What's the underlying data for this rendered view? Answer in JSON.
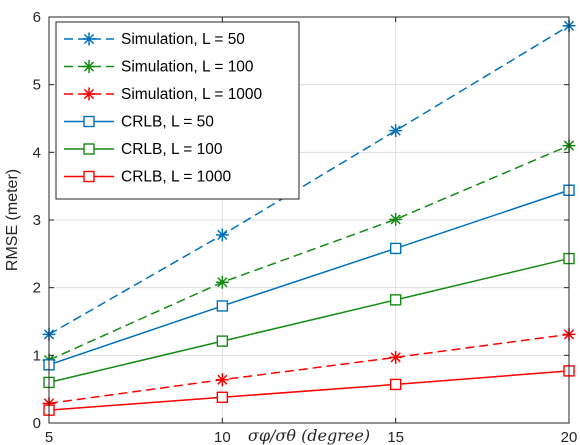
{
  "chart_data": {
    "type": "line",
    "title": "",
    "xlabel": "σφ/σθ (degree)",
    "ylabel": "RMSE (meter)",
    "x": [
      5,
      10,
      15,
      20
    ],
    "xlim": [
      5,
      20
    ],
    "ylim": [
      0,
      6
    ],
    "xticks": [
      "5",
      "10",
      "15",
      "20"
    ],
    "yticks": [
      "0",
      "1",
      "2",
      "3",
      "4",
      "5",
      "6"
    ],
    "grid": true,
    "legend_position": "top-left",
    "series": [
      {
        "name": "Simulation, L = 50",
        "values": [
          1.31,
          2.78,
          4.32,
          5.87
        ],
        "color": "#0072BD",
        "line_style": "dashed",
        "marker": "asterisk"
      },
      {
        "name": "Simulation, L = 100",
        "values": [
          0.93,
          2.08,
          3.01,
          4.1
        ],
        "color": "#148C14",
        "line_style": "dashed",
        "marker": "asterisk"
      },
      {
        "name": "Simulation, L = 1000",
        "values": [
          0.29,
          0.64,
          0.97,
          1.31
        ],
        "color": "#FF0000",
        "line_style": "dashed",
        "marker": "asterisk"
      },
      {
        "name": "CRLB, L = 50",
        "values": [
          0.86,
          1.73,
          2.58,
          3.44
        ],
        "color": "#0072BD",
        "line_style": "solid",
        "marker": "square"
      },
      {
        "name": "CRLB, L = 100",
        "values": [
          0.6,
          1.21,
          1.82,
          2.43
        ],
        "color": "#148C14",
        "line_style": "solid",
        "marker": "square"
      },
      {
        "name": "CRLB, L = 1000",
        "values": [
          0.19,
          0.38,
          0.57,
          0.77
        ],
        "color": "#FF0000",
        "line_style": "solid",
        "marker": "square"
      }
    ]
  }
}
